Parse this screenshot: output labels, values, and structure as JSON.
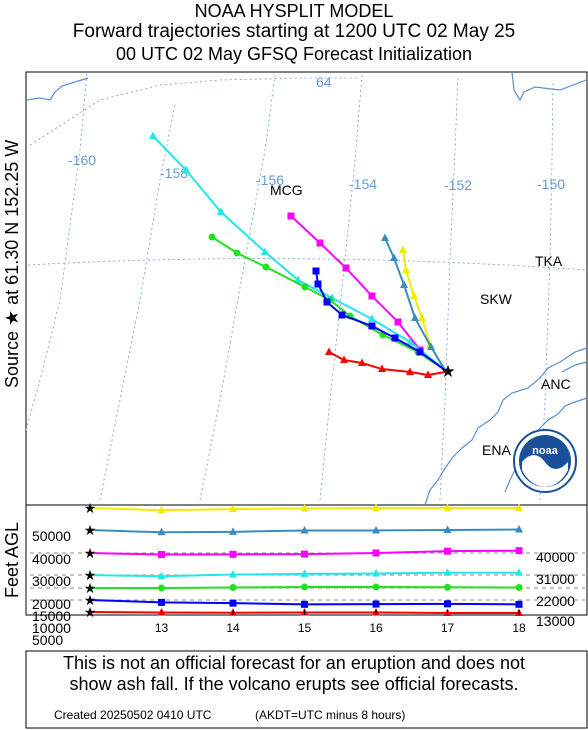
{
  "header": {
    "line1": "NOAA HYSPLIT MODEL",
    "line2": "Forward trajectories starting at 1200 UTC 02 May 25",
    "line3": "00 UTC 02 May    GFSQ  Forecast Initialization"
  },
  "side_labels": {
    "source": "Source ★  at   61.30 N  152.25 W",
    "feet": "Feet AGL"
  },
  "notice": {
    "line1": "This is not an official forecast for an eruption and does not",
    "line2": "show ash fall. If the volcano erupts see official forecasts."
  },
  "footer": {
    "created": "Created 20250502 0410 UTC",
    "akdt": "(AKDT=UTC minus 8 hours)"
  },
  "logo_text": "noaa",
  "colors": {
    "yellow": "#f2ea00",
    "steelblue": "#3a8bbf",
    "magenta": "#ff00ff",
    "cyan": "#20e8e8",
    "green": "#20e020",
    "blue": "#0000ff",
    "red": "#ff0000",
    "coast": "#5a8fc8",
    "grid": "#6a9ad0"
  },
  "chart_data": [
    {
      "type": "map",
      "grid_labels": [
        "-160",
        "-158",
        "-156",
        "-154",
        "-152",
        "-150",
        "64"
      ],
      "place_labels": [
        "MCG",
        "TKA",
        "SKW",
        "ANC",
        "ENA"
      ],
      "source": {
        "lat": 61.3,
        "lon": -152.25
      },
      "series": [
        {
          "color": "yellow",
          "marker": "triangle",
          "height_ft": 50000
        },
        {
          "color": "steelblue",
          "marker": "triangle",
          "height_ft": 40000
        },
        {
          "color": "magenta",
          "marker": "square",
          "height_ft": 30000
        },
        {
          "color": "cyan",
          "marker": "triangle",
          "height_ft": 20000
        },
        {
          "color": "green",
          "marker": "circle",
          "height_ft": 15000
        },
        {
          "color": "blue",
          "marker": "square",
          "height_ft": 10000
        },
        {
          "color": "red",
          "marker": "triangle",
          "height_ft": 5000
        }
      ]
    },
    {
      "type": "line",
      "xlabel": "",
      "ylabel": "Feet AGL",
      "x_ticks": [
        "13",
        "14",
        "15",
        "16",
        "17",
        "18"
      ],
      "xlim": [
        12,
        18
      ],
      "y_left_labels": [
        "50000",
        "40000",
        "30000",
        "20000",
        "15000",
        "10000",
        "5000"
      ],
      "y_right_labels": [
        "40000",
        "31000",
        "22000",
        "13000"
      ],
      "series": [
        {
          "color": "yellow",
          "marker": "triangle",
          "x": [
            12,
            13,
            14,
            15,
            16,
            17,
            18
          ],
          "y": [
            50000,
            49000,
            49500,
            49800,
            50000,
            50200,
            50300
          ]
        },
        {
          "color": "steelblue",
          "marker": "triangle",
          "x": [
            12,
            13,
            14,
            15,
            16,
            17,
            18
          ],
          "y": [
            40000,
            39000,
            39200,
            39800,
            39800,
            40000,
            40200
          ]
        },
        {
          "color": "magenta",
          "marker": "square",
          "x": [
            12,
            13,
            14,
            15,
            16,
            17,
            18
          ],
          "y": [
            30000,
            29300,
            29400,
            29500,
            30000,
            30800,
            31000
          ]
        },
        {
          "color": "cyan",
          "marker": "triangle",
          "x": [
            12,
            13,
            14,
            15,
            16,
            17,
            18
          ],
          "y": [
            20000,
            19500,
            20200,
            20500,
            20700,
            21000,
            21000
          ]
        },
        {
          "color": "green",
          "marker": "circle",
          "x": [
            12,
            13,
            14,
            15,
            16,
            17,
            18
          ],
          "y": [
            15000,
            15000,
            15200,
            15400,
            15400,
            15300,
            15200
          ]
        },
        {
          "color": "blue",
          "marker": "square",
          "x": [
            12,
            13,
            14,
            15,
            16,
            17,
            18
          ],
          "y": [
            10000,
            9000,
            8700,
            8200,
            8300,
            8400,
            8200
          ]
        },
        {
          "color": "red",
          "marker": "triangle",
          "x": [
            12,
            13,
            14,
            15,
            16,
            17,
            18
          ],
          "y": [
            5000,
            4800,
            4700,
            4800,
            4800,
            4600,
            4600
          ]
        }
      ]
    }
  ]
}
